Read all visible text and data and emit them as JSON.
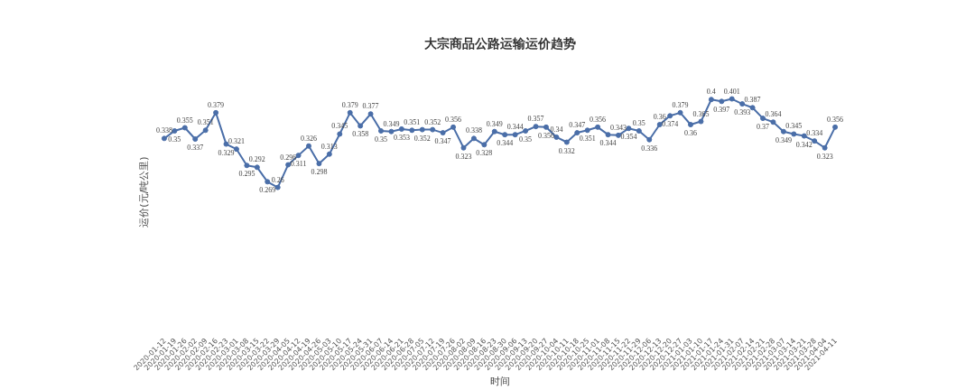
{
  "chart_data": {
    "type": "line",
    "title": "大宗商品公路运输运价趋势",
    "xlabel": "时间",
    "ylabel": "运价(元/吨公里)",
    "categories": [
      "2020-01-12",
      "2020-01-19",
      "2020-01-26",
      "2020-02-02",
      "2020-02-09",
      "2020-02-16",
      "2020-02-23",
      "2020-03-01",
      "2020-03-08",
      "2020-03-15",
      "2020-03-22",
      "2020-03-29",
      "2020-04-05",
      "2020-04-12",
      "2020-04-19",
      "2020-04-26",
      "2020-05-03",
      "2020-05-10",
      "2020-05-17",
      "2020-05-24",
      "2020-05-31",
      "2020-06-07",
      "2020-06-14",
      "2020-06-21",
      "2020-06-28",
      "2020-07-05",
      "2020-07-12",
      "2020-07-19",
      "2020-07-26",
      "2020-08-02",
      "2020-08-09",
      "2020-08-16",
      "2020-08-23",
      "2020-08-30",
      "2020-09-06",
      "2020-09-13",
      "2020-09-20",
      "2020-09-27",
      "2020-10-04",
      "2020-10-11",
      "2020-10-18",
      "2020-10-25",
      "2020-11-01",
      "2020-11-08",
      "2020-11-15",
      "2020-11-22",
      "2020-11-29",
      "2020-12-06",
      "2020-12-13",
      "2020-12-20",
      "2020-12-27",
      "2021-01-03",
      "2021-01-10",
      "2021-01-17",
      "2021-01-24",
      "2021-01-31",
      "2021-02-07",
      "2021-02-14",
      "2021-02-21",
      "2021-02-28",
      "2021-03-07",
      "2021-03-14",
      "2021-03-21",
      "2021-03-28",
      "2021-04-04",
      "2021-04-11"
    ],
    "series": [
      {
        "color": "#4a6ea8",
        "values": [
          0.338,
          0.35,
          0.355,
          0.337,
          0.351,
          0.379,
          0.329,
          0.321,
          0.295,
          0.292,
          0.269,
          0.26,
          0.296,
          0.311,
          0.326,
          0.298,
          0.313,
          0.345,
          0.379,
          0.358,
          0.377,
          0.35,
          0.349,
          0.353,
          0.351,
          0.352,
          0.352,
          0.347,
          0.356,
          0.323,
          0.338,
          0.328,
          0.349,
          0.344,
          0.344,
          0.35,
          0.357,
          0.356,
          0.34,
          0.332,
          0.347,
          0.351,
          0.356,
          0.344,
          0.343,
          0.354,
          0.35,
          0.336,
          0.36,
          0.374,
          0.379,
          0.36,
          0.365,
          0.4,
          0.397,
          0.401,
          0.393,
          0.387,
          0.37,
          0.364,
          0.349,
          0.345,
          0.342,
          0.334,
          0.323,
          0.356
        ]
      }
    ],
    "data_labels": true,
    "marker": "circle",
    "line_style": "solid",
    "grid": false
  }
}
